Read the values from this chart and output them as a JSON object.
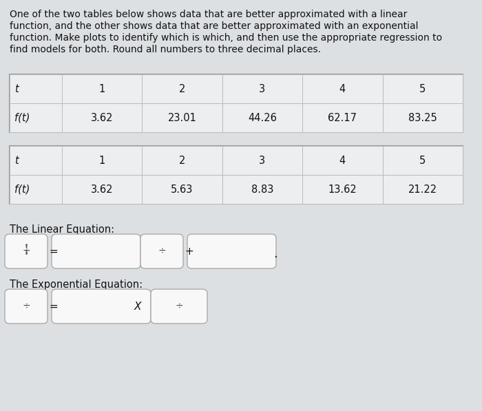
{
  "desc_lines": [
    "One of the two tables below shows data that are better approximated with a linear",
    "function, and the other shows data that are better approximated with an exponential",
    "function. Make plots to identify which is which, and then use the appropriate regression to",
    "find models for both. Round all numbers to three decimal places."
  ],
  "table1_headers": [
    "t",
    "1",
    "2",
    "3",
    "4",
    "5"
  ],
  "table1_row_label": "f(t)",
  "table1_values": [
    "3.62",
    "23.01",
    "44.26",
    "62.17",
    "83.25"
  ],
  "table2_headers": [
    "t",
    "1",
    "2",
    "3",
    "4",
    "5"
  ],
  "table2_row_label": "f(t)",
  "table2_values": [
    "3.62",
    "5.63",
    "8.83",
    "13.62",
    "21.22"
  ],
  "linear_label": "The Linear Equation:",
  "exponential_label": "The Exponential Equation:",
  "bg_color": "#dde0e3",
  "table_bg": "#eceef0",
  "table_border_color": "#999999",
  "cell_border_color": "#bbbbbb",
  "text_color": "#111111",
  "input_box_color": "#f8f8f8",
  "input_box_border": "#aaaaaa",
  "font_size_desc": 10.0,
  "font_size_table": 10.5,
  "font_size_label": 10.5,
  "font_size_box": 10.0
}
